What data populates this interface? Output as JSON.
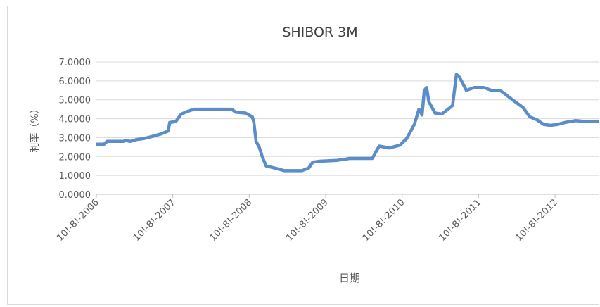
{
  "chart_data": {
    "type": "line",
    "title": "SHIBOR 3M",
    "x_label": "日期",
    "y_label": "利率（%）",
    "x": [
      2006.0,
      2006.1,
      2006.14,
      2006.35,
      2006.39,
      2006.44,
      2006.53,
      2006.62,
      2006.72,
      2006.85,
      2006.94,
      2006.96,
      2007.04,
      2007.11,
      2007.2,
      2007.28,
      2007.77,
      2007.82,
      2007.95,
      2008.04,
      2008.06,
      2008.09,
      2008.13,
      2008.17,
      2008.22,
      2008.37,
      2008.46,
      2008.69,
      2008.78,
      2008.83,
      2008.92,
      2009.15,
      2009.24,
      2009.31,
      2009.61,
      2009.65,
      2009.7,
      2009.77,
      2009.83,
      2009.97,
      2010.06,
      2010.16,
      2010.22,
      2010.26,
      2010.29,
      2010.32,
      2010.35,
      2010.39,
      2010.43,
      2010.52,
      2010.6,
      2010.66,
      2010.71,
      2010.75,
      2010.84,
      2010.94,
      2011.07,
      2011.17,
      2011.28,
      2011.35,
      2011.46,
      2011.58,
      2011.67,
      2011.76,
      2011.85,
      2011.94,
      2012.04,
      2012.13,
      2012.27,
      2012.4,
      2012.57
    ],
    "series": [
      {
        "name": "SHIBOR 3M",
        "color": "#5b8ec8",
        "values": [
          2.65,
          2.65,
          2.8,
          2.8,
          2.85,
          2.8,
          2.9,
          2.95,
          3.05,
          3.2,
          3.35,
          3.8,
          3.85,
          4.25,
          4.4,
          4.5,
          4.5,
          4.35,
          4.3,
          4.1,
          3.8,
          2.8,
          2.5,
          2.0,
          1.5,
          1.35,
          1.25,
          1.25,
          1.4,
          1.7,
          1.75,
          1.8,
          1.85,
          1.9,
          1.9,
          2.2,
          2.55,
          2.5,
          2.45,
          2.6,
          2.95,
          3.7,
          4.5,
          4.2,
          5.5,
          5.65,
          4.9,
          4.6,
          4.3,
          4.25,
          4.5,
          4.7,
          6.35,
          6.2,
          5.5,
          5.65,
          5.65,
          5.5,
          5.5,
          5.3,
          4.95,
          4.6,
          4.1,
          3.95,
          3.7,
          3.65,
          3.7,
          3.8,
          3.9,
          3.85,
          3.85
        ]
      }
    ],
    "xlim": [
      2006,
      2012.57
    ],
    "xticks": [
      {
        "value": 2006,
        "label": "10!-8!-2006"
      },
      {
        "value": 2007,
        "label": "10!-8!-2007"
      },
      {
        "value": 2008,
        "label": "10!-8!-2008"
      },
      {
        "value": 2009,
        "label": "10!-8!-2009"
      },
      {
        "value": 2010,
        "label": "10!-8!-2010"
      },
      {
        "value": 2011,
        "label": "10!-8!-2011"
      },
      {
        "value": 2012,
        "label": "10!-8!-2012"
      }
    ],
    "ylim": [
      0,
      7
    ],
    "yticks": [
      {
        "value": 0,
        "label": "0.0000"
      },
      {
        "value": 1,
        "label": "1.0000"
      },
      {
        "value": 2,
        "label": "2.0000"
      },
      {
        "value": 3,
        "label": "3.0000"
      },
      {
        "value": 4,
        "label": "4.0000"
      },
      {
        "value": 5,
        "label": "5.0000"
      },
      {
        "value": 6,
        "label": "6.0000"
      },
      {
        "value": 7,
        "label": "7.0000"
      }
    ],
    "grid": true
  }
}
